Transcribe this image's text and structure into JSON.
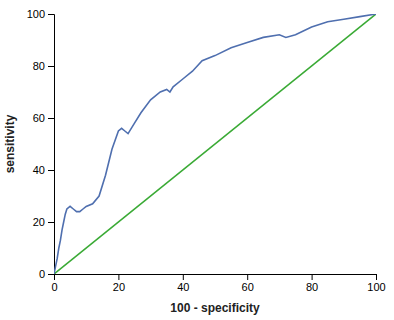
{
  "chart_data": {
    "type": "line",
    "xlabel": "100 - specificity",
    "ylabel": "sensitivity",
    "series": [
      {
        "color": "#3aaa35",
        "x": [
          0,
          100
        ],
        "values": [
          0,
          100
        ]
      },
      {
        "color": "#4f6faf",
        "x": [
          0,
          0.5,
          1,
          1.5,
          2,
          2.5,
          3,
          3.5,
          4,
          5,
          6,
          7,
          8,
          9,
          10,
          12,
          14,
          16,
          18,
          20,
          21,
          22,
          23,
          24,
          25,
          27,
          30,
          33,
          35,
          36,
          37,
          40,
          43,
          46,
          50,
          55,
          60,
          65,
          70,
          72,
          75,
          80,
          85,
          90,
          95,
          100
        ],
        "values": [
          0,
          3,
          6,
          10,
          13,
          17,
          20,
          23,
          25,
          26,
          25,
          24,
          24,
          25,
          26,
          27,
          30,
          38,
          48,
          55,
          56,
          55,
          54,
          56,
          58,
          62,
          67,
          70,
          71,
          70,
          72,
          75,
          78,
          82,
          84,
          87,
          89,
          91,
          92,
          91,
          92,
          95,
          97,
          98,
          99,
          100
        ]
      }
    ],
    "xlim": [
      0,
      100
    ],
    "ylim": [
      0,
      100
    ],
    "xticks": [
      0,
      20,
      40,
      60,
      80,
      100
    ],
    "yticks": [
      0,
      20,
      40,
      60,
      80,
      100
    ],
    "grid": false
  }
}
